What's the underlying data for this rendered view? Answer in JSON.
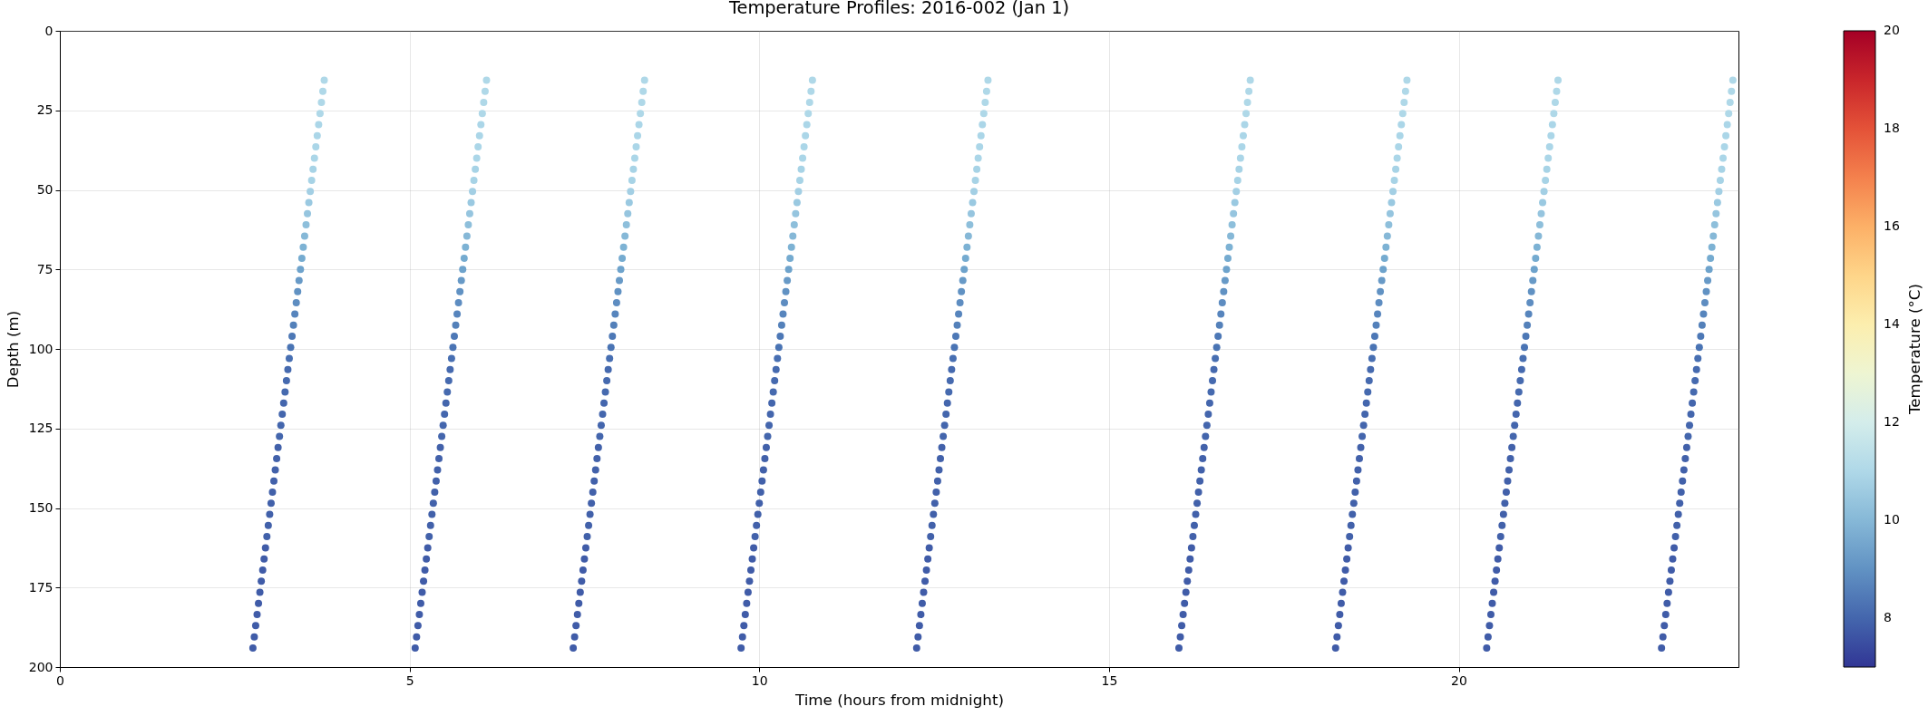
{
  "chart_data": {
    "type": "scatter",
    "title": "Temperature Profiles: 2016-002 (Jan 1)",
    "xlabel": "Time (hours from midnight)",
    "ylabel": "Depth (m)",
    "clabel": "Temperature (°C)",
    "xlim": [
      0,
      24
    ],
    "xticks": [
      0,
      5,
      10,
      15,
      20
    ],
    "ylim": [
      200,
      0
    ],
    "yticks": [
      0,
      25,
      50,
      75,
      100,
      125,
      150,
      175,
      200
    ],
    "clim": [
      7,
      20
    ],
    "cticks": [
      8,
      10,
      12,
      14,
      16,
      18,
      20
    ],
    "grid": true,
    "marker": "circle",
    "x": [
      2.76,
      2.78,
      2.8,
      2.82,
      2.84,
      2.86,
      2.88,
      2.9,
      2.92,
      2.94,
      2.96,
      2.98,
      3.0,
      3.02,
      3.04,
      3.06,
      3.08,
      3.1,
      3.12,
      3.14,
      3.16,
      3.18,
      3.2,
      3.22,
      3.24,
      3.26,
      3.28,
      3.3,
      3.32,
      3.34,
      3.36,
      3.38,
      3.4,
      3.42,
      3.44,
      3.46,
      3.48,
      3.5,
      3.52,
      3.54,
      3.56,
      3.58,
      3.6,
      3.62,
      3.64,
      3.66,
      3.68,
      3.7,
      3.72,
      3.74,
      3.76,
      3.78,
      5.08,
      5.1,
      5.12,
      5.14,
      5.16,
      5.18,
      5.2,
      5.22,
      5.24,
      5.26,
      5.28,
      5.3,
      5.32,
      5.34,
      5.36,
      5.38,
      5.4,
      5.42,
      5.44,
      5.46,
      5.48,
      5.5,
      5.52,
      5.54,
      5.56,
      5.58,
      5.6,
      5.62,
      5.64,
      5.66,
      5.68,
      5.7,
      5.72,
      5.74,
      5.76,
      5.78,
      5.8,
      5.82,
      5.84,
      5.86,
      5.88,
      5.9,
      5.92,
      5.94,
      5.96,
      5.98,
      6.0,
      6.02,
      6.04,
      6.06,
      6.08,
      6.1,
      7.34,
      7.36,
      7.38,
      7.4,
      7.42,
      7.44,
      7.46,
      7.48,
      7.5,
      7.52,
      7.54,
      7.56,
      7.58,
      7.6,
      7.62,
      7.64,
      7.66,
      7.68,
      7.7,
      7.72,
      7.74,
      7.76,
      7.78,
      7.8,
      7.82,
      7.84,
      7.86,
      7.88,
      7.9,
      7.92,
      7.94,
      7.96,
      7.98,
      8.0,
      8.02,
      8.04,
      8.06,
      8.08,
      8.1,
      8.12,
      8.14,
      8.16,
      8.18,
      8.2,
      8.22,
      8.24,
      8.26,
      8.28,
      8.3,
      8.32,
      8.34,
      8.36,
      9.74,
      9.76,
      9.78,
      9.8,
      9.82,
      9.84,
      9.86,
      9.88,
      9.9,
      9.92,
      9.94,
      9.96,
      9.98,
      10.0,
      10.02,
      10.04,
      10.06,
      10.08,
      10.1,
      10.12,
      10.14,
      10.16,
      10.18,
      10.2,
      10.22,
      10.24,
      10.26,
      10.28,
      10.3,
      10.32,
      10.34,
      10.36,
      10.38,
      10.4,
      10.42,
      10.44,
      10.46,
      10.48,
      10.5,
      10.52,
      10.54,
      10.56,
      10.58,
      10.6,
      10.62,
      10.64,
      10.66,
      10.68,
      10.7,
      10.72,
      10.74,
      10.76,
      12.25,
      12.27,
      12.29,
      12.31,
      12.33,
      12.35,
      12.37,
      12.39,
      12.41,
      12.43,
      12.45,
      12.47,
      12.49,
      12.51,
      12.53,
      12.55,
      12.57,
      12.59,
      12.61,
      12.63,
      12.65,
      12.67,
      12.69,
      12.71,
      12.73,
      12.75,
      12.77,
      12.79,
      12.81,
      12.83,
      12.85,
      12.87,
      12.89,
      12.91,
      12.93,
      12.95,
      12.97,
      12.99,
      13.01,
      13.03,
      13.05,
      13.07,
      13.09,
      13.11,
      13.13,
      13.15,
      13.17,
      13.19,
      13.21,
      13.23,
      13.25,
      13.27,
      16.0,
      16.02,
      16.04,
      16.06,
      16.08,
      16.1,
      16.12,
      16.14,
      16.16,
      16.18,
      16.2,
      16.22,
      16.24,
      16.26,
      16.28,
      16.3,
      16.32,
      16.34,
      16.36,
      16.38,
      16.4,
      16.42,
      16.44,
      16.46,
      16.48,
      16.5,
      16.52,
      16.54,
      16.56,
      16.58,
      16.6,
      16.62,
      16.64,
      16.66,
      16.68,
      16.7,
      16.72,
      16.74,
      16.76,
      16.78,
      16.8,
      16.82,
      16.84,
      16.86,
      16.88,
      16.9,
      16.92,
      16.94,
      16.96,
      16.98,
      17.0,
      17.02,
      18.24,
      18.26,
      18.28,
      18.3,
      18.32,
      18.34,
      18.36,
      18.38,
      18.4,
      18.42,
      18.44,
      18.46,
      18.48,
      18.5,
      18.52,
      18.54,
      18.56,
      18.58,
      18.6,
      18.62,
      18.64,
      18.66,
      18.68,
      18.7,
      18.72,
      18.74,
      18.76,
      18.78,
      18.8,
      18.82,
      18.84,
      18.86,
      18.88,
      18.9,
      18.92,
      18.94,
      18.96,
      18.98,
      19.0,
      19.02,
      19.04,
      19.06,
      19.08,
      19.1,
      19.12,
      19.14,
      19.16,
      19.18,
      19.2,
      19.22,
      19.24,
      19.26,
      20.4,
      20.42,
      20.44,
      20.46,
      20.48,
      20.5,
      20.52,
      20.54,
      20.56,
      20.58,
      20.6,
      20.62,
      20.64,
      20.66,
      20.68,
      20.7,
      20.72,
      20.74,
      20.76,
      20.78,
      20.8,
      20.82,
      20.84,
      20.86,
      20.88,
      20.9,
      20.92,
      20.94,
      20.96,
      20.98,
      21.0,
      21.02,
      21.04,
      21.06,
      21.08,
      21.1,
      21.12,
      21.14,
      21.16,
      21.18,
      21.2,
      21.22,
      21.24,
      21.26,
      21.28,
      21.3,
      21.32,
      21.34,
      21.36,
      21.38,
      21.4,
      21.42,
      22.9,
      22.92,
      22.94,
      22.96,
      22.98,
      23.0,
      23.02,
      23.04,
      23.06,
      23.08,
      23.1,
      23.12,
      23.14,
      23.16,
      23.18,
      23.2,
      23.22,
      23.24,
      23.26,
      23.28,
      23.3,
      23.32,
      23.34,
      23.36,
      23.38,
      23.4,
      23.42,
      23.44,
      23.46,
      23.48,
      23.5,
      23.52,
      23.54,
      23.56,
      23.58,
      23.6,
      23.62,
      23.64,
      23.66,
      23.68,
      23.7,
      23.72,
      23.74,
      23.76,
      23.78,
      23.8,
      23.82,
      23.84,
      23.86,
      23.88,
      23.9,
      23.92
    ],
    "values": [
      194,
      190.5,
      187,
      183.5,
      180,
      176.5,
      173,
      169.5,
      166,
      162.5,
      159,
      155.5,
      152,
      148.5,
      145,
      141.5,
      138,
      134.5,
      131,
      127.5,
      124,
      120.5,
      117,
      113.5,
      110,
      106.5,
      103,
      99.5,
      96,
      92.5,
      89,
      85.5,
      82,
      78.5,
      75,
      71.5,
      68,
      64.5,
      61,
      57.5,
      54,
      50.5,
      47,
      43.5,
      40,
      36.5,
      33,
      29.5,
      26,
      22.5,
      19,
      15.5,
      194,
      190.5,
      187,
      183.5,
      180,
      176.5,
      173,
      169.5,
      166,
      162.5,
      159,
      155.5,
      152,
      148.5,
      145,
      141.5,
      138,
      134.5,
      131,
      127.5,
      124,
      120.5,
      117,
      113.5,
      110,
      106.5,
      103,
      99.5,
      96,
      92.5,
      89,
      85.5,
      82,
      78.5,
      75,
      71.5,
      68,
      64.5,
      61,
      57.5,
      54,
      50.5,
      47,
      43.5,
      40,
      36.5,
      33,
      29.5,
      26,
      22.5,
      19,
      15.5,
      194,
      190.5,
      187,
      183.5,
      180,
      176.5,
      173,
      169.5,
      166,
      162.5,
      159,
      155.5,
      152,
      148.5,
      145,
      141.5,
      138,
      134.5,
      131,
      127.5,
      124,
      120.5,
      117,
      113.5,
      110,
      106.5,
      103,
      99.5,
      96,
      92.5,
      89,
      85.5,
      82,
      78.5,
      75,
      71.5,
      68,
      64.5,
      61,
      57.5,
      54,
      50.5,
      47,
      43.5,
      40,
      36.5,
      33,
      29.5,
      26,
      22.5,
      19,
      15.5,
      194,
      190.5,
      187,
      183.5,
      180,
      176.5,
      173,
      169.5,
      166,
      162.5,
      159,
      155.5,
      152,
      148.5,
      145,
      141.5,
      138,
      134.5,
      131,
      127.5,
      124,
      120.5,
      117,
      113.5,
      110,
      106.5,
      103,
      99.5,
      96,
      92.5,
      89,
      85.5,
      82,
      78.5,
      75,
      71.5,
      68,
      64.5,
      61,
      57.5,
      54,
      50.5,
      47,
      43.5,
      40,
      36.5,
      33,
      29.5,
      26,
      22.5,
      19,
      15.5,
      194,
      190.5,
      187,
      183.5,
      180,
      176.5,
      173,
      169.5,
      166,
      162.5,
      159,
      155.5,
      152,
      148.5,
      145,
      141.5,
      138,
      134.5,
      131,
      127.5,
      124,
      120.5,
      117,
      113.5,
      110,
      106.5,
      103,
      99.5,
      96,
      92.5,
      89,
      85.5,
      82,
      78.5,
      75,
      71.5,
      68,
      64.5,
      61,
      57.5,
      54,
      50.5,
      47,
      43.5,
      40,
      36.5,
      33,
      29.5,
      26,
      22.5,
      19,
      15.5,
      194,
      190.5,
      187,
      183.5,
      180,
      176.5,
      173,
      169.5,
      166,
      162.5,
      159,
      155.5,
      152,
      148.5,
      145,
      141.5,
      138,
      134.5,
      131,
      127.5,
      124,
      120.5,
      117,
      113.5,
      110,
      106.5,
      103,
      99.5,
      96,
      92.5,
      89,
      85.5,
      82,
      78.5,
      75,
      71.5,
      68,
      64.5,
      61,
      57.5,
      54,
      50.5,
      47,
      43.5,
      40,
      36.5,
      33,
      29.5,
      26,
      22.5,
      19,
      15.5,
      194,
      190.5,
      187,
      183.5,
      180,
      176.5,
      173,
      169.5,
      166,
      162.5,
      159,
      155.5,
      152,
      148.5,
      145,
      141.5,
      138,
      134.5,
      131,
      127.5,
      124,
      120.5,
      117,
      113.5,
      110,
      106.5,
      103,
      99.5,
      96,
      92.5,
      89,
      85.5,
      82,
      78.5,
      75,
      71.5,
      68,
      64.5,
      61,
      57.5,
      54,
      50.5,
      47,
      43.5,
      40,
      36.5,
      33,
      29.5,
      26,
      22.5,
      19,
      15.5,
      194,
      190.5,
      187,
      183.5,
      180,
      176.5,
      173,
      169.5,
      166,
      162.5,
      159,
      155.5,
      152,
      148.5,
      145,
      141.5,
      138,
      134.5,
      131,
      127.5,
      124,
      120.5,
      117,
      113.5,
      110,
      106.5,
      103,
      99.5,
      96,
      92.5,
      89,
      85.5,
      82,
      78.5,
      75,
      71.5,
      68,
      64.5,
      61,
      57.5,
      54,
      50.5,
      47,
      43.5,
      40,
      36.5,
      33,
      29.5,
      26,
      22.5,
      19,
      15.5,
      194,
      190.5,
      187,
      183.5,
      180,
      176.5,
      173,
      169.5,
      166,
      162.5,
      159,
      155.5,
      152,
      148.5,
      145,
      141.5,
      138,
      134.5,
      131,
      127.5,
      124,
      120.5,
      117,
      113.5,
      110,
      106.5,
      103,
      99.5,
      96,
      92.5,
      89,
      85.5,
      82,
      78.5,
      75,
      71.5,
      68,
      64.5,
      61,
      57.5,
      54,
      50.5,
      47,
      43.5,
      40,
      36.5,
      33,
      29.5,
      26,
      22.5,
      19,
      15.5
    ],
    "cvalues": [
      7.8,
      7.8,
      7.8,
      7.8,
      7.8,
      7.8,
      7.8,
      7.8,
      7.8,
      7.8,
      7.9,
      7.9,
      7.9,
      7.9,
      7.9,
      7.9,
      7.9,
      7.9,
      7.9,
      8,
      8,
      8,
      8,
      8.1,
      8.1,
      8.1,
      8.2,
      8.3,
      8.4,
      8.6,
      8.7,
      8.9,
      9,
      9.2,
      9.4,
      9.6,
      9.8,
      10,
      10.2,
      10.4,
      10.5,
      10.7,
      10.8,
      10.8,
      10.9,
      10.9,
      10.9,
      10.9,
      11,
      11,
      11,
      11,
      7.8,
      7.8,
      7.8,
      7.8,
      7.8,
      7.8,
      7.8,
      7.8,
      7.8,
      7.8,
      7.9,
      7.9,
      7.9,
      7.9,
      7.9,
      7.9,
      7.9,
      7.9,
      7.9,
      8,
      8,
      8,
      8,
      8.1,
      8.1,
      8.1,
      8.2,
      8.3,
      8.4,
      8.6,
      8.7,
      8.9,
      9,
      9.2,
      9.4,
      9.6,
      9.8,
      10,
      10.2,
      10.4,
      10.5,
      10.7,
      10.8,
      10.8,
      10.9,
      10.9,
      10.9,
      10.9,
      11,
      11,
      11,
      11,
      7.8,
      7.8,
      7.8,
      7.8,
      7.8,
      7.8,
      7.8,
      7.8,
      7.8,
      7.8,
      7.9,
      7.9,
      7.9,
      7.9,
      7.9,
      7.9,
      7.9,
      7.9,
      7.9,
      8,
      8,
      8,
      8,
      8.1,
      8.1,
      8.1,
      8.2,
      8.3,
      8.4,
      8.6,
      8.7,
      8.9,
      9,
      9.2,
      9.4,
      9.6,
      9.8,
      10,
      10.2,
      10.4,
      10.5,
      10.7,
      10.8,
      10.8,
      10.9,
      10.9,
      10.9,
      10.9,
      11,
      11,
      11,
      11,
      7.8,
      7.8,
      7.8,
      7.8,
      7.8,
      7.8,
      7.8,
      7.8,
      7.8,
      7.8,
      7.9,
      7.9,
      7.9,
      7.9,
      7.9,
      7.9,
      7.9,
      7.9,
      7.9,
      8,
      8,
      8,
      8,
      8.1,
      8.1,
      8.1,
      8.2,
      8.3,
      8.4,
      8.6,
      8.7,
      8.9,
      9,
      9.2,
      9.4,
      9.6,
      9.8,
      10,
      10.2,
      10.4,
      10.5,
      10.7,
      10.8,
      10.8,
      10.9,
      10.9,
      10.9,
      10.9,
      11,
      11,
      11,
      11,
      7.8,
      7.8,
      7.8,
      7.8,
      7.8,
      7.8,
      7.8,
      7.8,
      7.8,
      7.8,
      7.9,
      7.9,
      7.9,
      7.9,
      7.9,
      7.9,
      7.9,
      7.9,
      7.9,
      8,
      8,
      8,
      8,
      8.1,
      8.1,
      8.1,
      8.2,
      8.3,
      8.4,
      8.6,
      8.7,
      8.9,
      9,
      9.2,
      9.4,
      9.6,
      9.8,
      10,
      10.2,
      10.4,
      10.5,
      10.7,
      10.8,
      10.8,
      10.9,
      10.9,
      10.9,
      10.9,
      11,
      11,
      11,
      11,
      7.8,
      7.8,
      7.8,
      7.8,
      7.8,
      7.8,
      7.8,
      7.8,
      7.8,
      7.8,
      7.9,
      7.9,
      7.9,
      7.9,
      7.9,
      7.9,
      7.9,
      7.9,
      7.9,
      8,
      8,
      8,
      8,
      8.1,
      8.1,
      8.1,
      8.2,
      8.3,
      8.4,
      8.6,
      8.7,
      8.9,
      9,
      9.2,
      9.4,
      9.6,
      9.8,
      10,
      10.2,
      10.4,
      10.5,
      10.7,
      10.8,
      10.8,
      10.9,
      10.9,
      10.9,
      10.9,
      11,
      11,
      11,
      11,
      7.8,
      7.8,
      7.8,
      7.8,
      7.8,
      7.8,
      7.8,
      7.8,
      7.8,
      7.8,
      7.9,
      7.9,
      7.9,
      7.9,
      7.9,
      7.9,
      7.9,
      7.9,
      7.9,
      8,
      8,
      8,
      8,
      8.1,
      8.1,
      8.1,
      8.2,
      8.3,
      8.4,
      8.6,
      8.7,
      8.9,
      9,
      9.2,
      9.4,
      9.6,
      9.8,
      10,
      10.2,
      10.4,
      10.5,
      10.7,
      10.8,
      10.8,
      10.9,
      10.9,
      10.9,
      10.9,
      11,
      11,
      11,
      11,
      7.8,
      7.8,
      7.8,
      7.8,
      7.8,
      7.8,
      7.8,
      7.8,
      7.8,
      7.8,
      7.9,
      7.9,
      7.9,
      7.9,
      7.9,
      7.9,
      7.9,
      7.9,
      7.9,
      8,
      8,
      8,
      8,
      8.1,
      8.1,
      8.1,
      8.2,
      8.3,
      8.4,
      8.6,
      8.7,
      8.9,
      9,
      9.2,
      9.4,
      9.6,
      9.8,
      10,
      10.2,
      10.4,
      10.5,
      10.7,
      10.8,
      10.8,
      10.9,
      10.9,
      10.9,
      10.9,
      11,
      11,
      11,
      11,
      7.8,
      7.8,
      7.8,
      7.8,
      7.8,
      7.8,
      7.8,
      7.8,
      7.8,
      7.8,
      7.9,
      7.9,
      7.9,
      7.9,
      7.9,
      7.9,
      7.9,
      7.9,
      7.9,
      8,
      8,
      8,
      8,
      8.1,
      8.1,
      8.1,
      8.2,
      8.3,
      8.4,
      8.6,
      8.7,
      8.9,
      9,
      9.2,
      9.4,
      9.6,
      9.8,
      10,
      10.2,
      10.4,
      10.5,
      10.7,
      10.8,
      10.8,
      10.9,
      10.9,
      10.9,
      10.9,
      11,
      11,
      11,
      11
    ]
  }
}
